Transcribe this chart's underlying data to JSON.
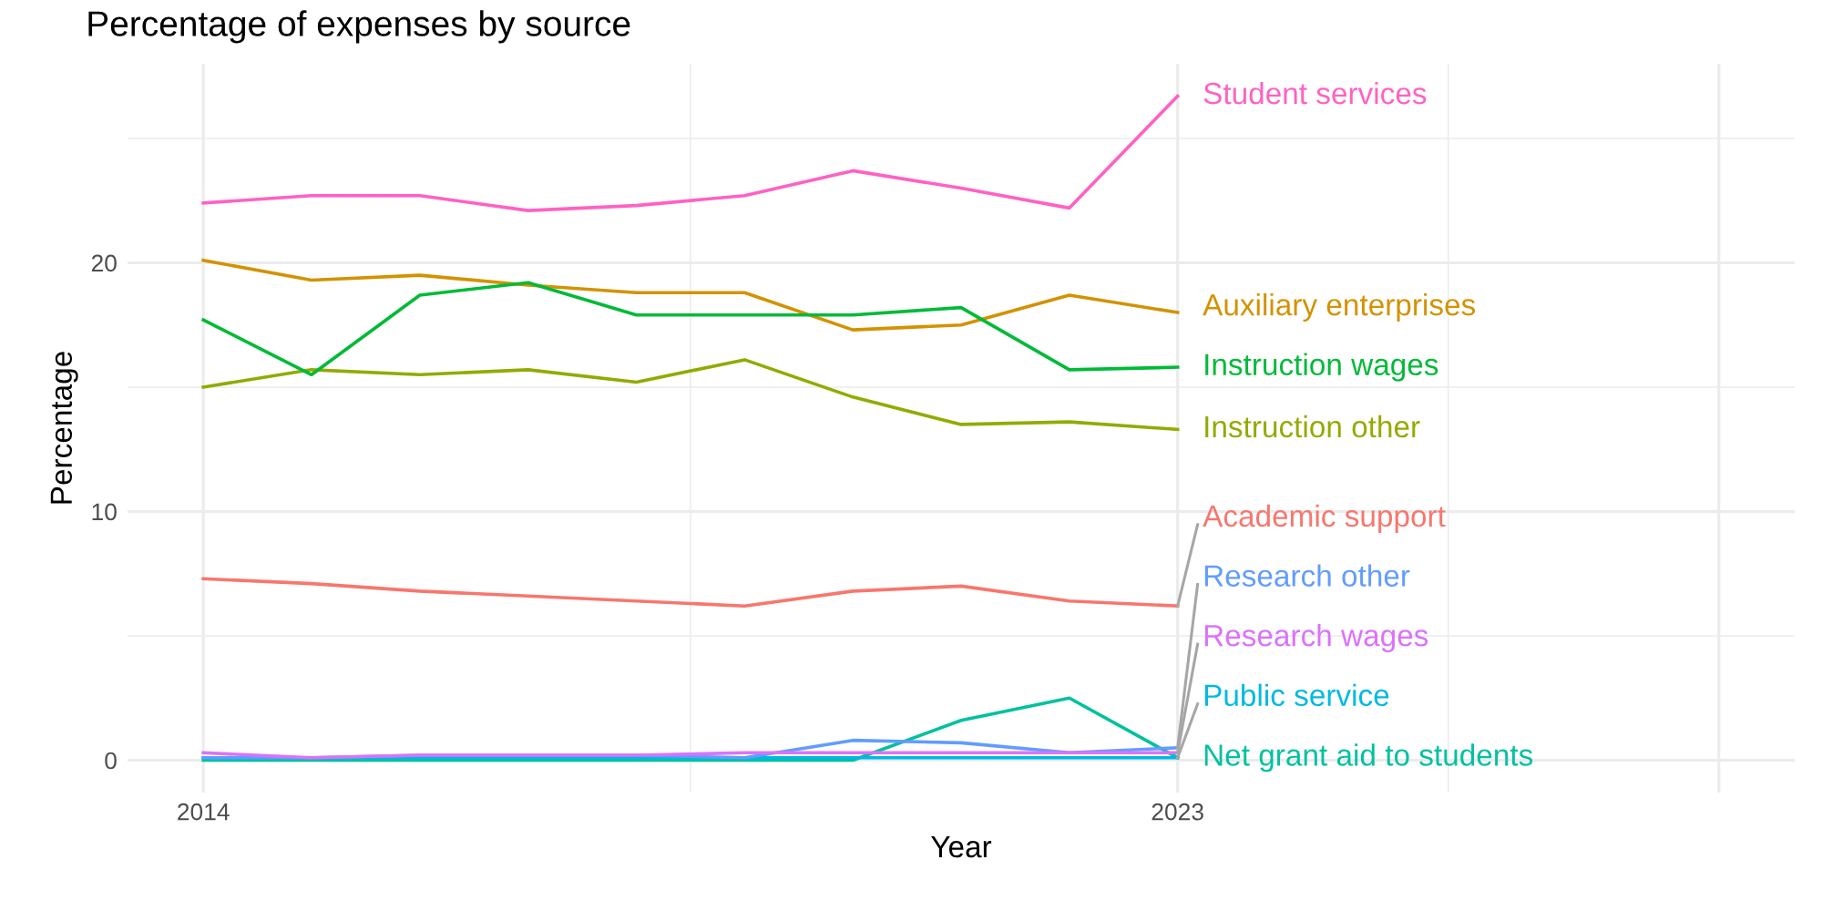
{
  "chart_data": {
    "type": "line",
    "title": "Percentage of expenses by source",
    "xlabel": "Year",
    "ylabel": "Percentage",
    "x": [
      2014,
      2015,
      2016,
      2017,
      2018,
      2019,
      2020,
      2021,
      2022,
      2023
    ],
    "xlim": [
      2013.3,
      2028.7
    ],
    "xticks": [
      2014,
      2023,
      {
        "value": 2028,
        "label": null
      }
    ],
    "ylim": [
      -1.3,
      28
    ],
    "yticks": [
      0,
      10,
      20
    ],
    "grid": true,
    "legend": false,
    "line_style": "solid",
    "marker": "none",
    "series": [
      {
        "name": "Academic support",
        "color": "#F8766D",
        "values": [
          7.3,
          7.1,
          6.8,
          6.6,
          6.4,
          6.2,
          6.8,
          7.0,
          6.4,
          6.2
        ]
      },
      {
        "name": "Auxiliary enterprises",
        "color": "#D39200",
        "values": [
          20.1,
          19.3,
          19.5,
          19.1,
          18.8,
          18.8,
          17.3,
          17.5,
          18.7,
          18.0
        ]
      },
      {
        "name": "Instruction other",
        "color": "#93AA00",
        "values": [
          15.0,
          15.7,
          15.5,
          15.7,
          15.2,
          16.1,
          14.6,
          13.5,
          13.6,
          13.3
        ]
      },
      {
        "name": "Instruction wages",
        "color": "#00BA38",
        "values": [
          17.7,
          15.5,
          18.7,
          19.2,
          17.9,
          17.9,
          17.9,
          18.2,
          15.7,
          15.8
        ]
      },
      {
        "name": "Net grant aid to students",
        "color": "#00C19F",
        "values": [
          0.0,
          0.0,
          0.0,
          0.0,
          0.0,
          0.0,
          0.0,
          1.6,
          2.5,
          0.1
        ]
      },
      {
        "name": "Public service",
        "color": "#00B9E3",
        "values": [
          0.1,
          0.1,
          0.1,
          0.1,
          0.1,
          0.1,
          0.1,
          0.1,
          0.1,
          0.1
        ]
      },
      {
        "name": "Research other",
        "color": "#619CFF",
        "values": [
          0.1,
          0.1,
          0.2,
          0.2,
          0.2,
          0.1,
          0.8,
          0.7,
          0.3,
          0.5
        ]
      },
      {
        "name": "Research wages",
        "color": "#DB72FB",
        "values": [
          0.3,
          0.1,
          0.2,
          0.2,
          0.2,
          0.3,
          0.3,
          0.3,
          0.3,
          0.3
        ]
      },
      {
        "name": "Student services",
        "color": "#FF61C3",
        "values": [
          22.4,
          22.7,
          22.7,
          22.1,
          22.3,
          22.7,
          23.7,
          23.0,
          22.2,
          26.7
        ]
      }
    ]
  }
}
